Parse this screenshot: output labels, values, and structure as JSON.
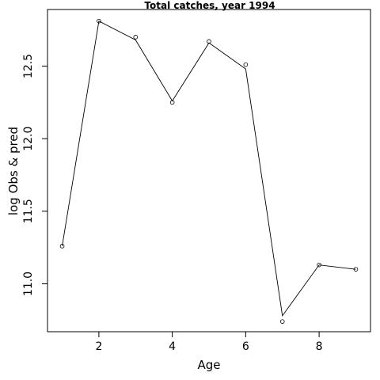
{
  "chart_data": {
    "type": "line",
    "title": "Total catches, year 1994",
    "xlabel": "Age",
    "ylabel": "log Obs & pred",
    "x": [
      1,
      2,
      3,
      4,
      5,
      6,
      7,
      8,
      9
    ],
    "series": [
      {
        "marker": "line",
        "values": [
          11.26,
          12.81,
          12.68,
          12.26,
          12.66,
          12.48,
          10.78,
          11.13,
          11.1
        ]
      },
      {
        "marker": "open-circle",
        "values": [
          11.26,
          12.81,
          12.7,
          12.25,
          12.67,
          12.51,
          10.74,
          11.13,
          11.1
        ]
      }
    ],
    "xlim": [
      0.6,
      9.4
    ],
    "ylim": [
      10.67,
      12.89
    ],
    "xticks": [
      2,
      4,
      6,
      8
    ],
    "yticks": [
      11.0,
      11.5,
      12.0,
      12.5
    ],
    "xtick_labels": [
      "2",
      "4",
      "6",
      "8"
    ],
    "ytick_labels": [
      "11.0",
      "11.5",
      "12.0",
      "12.5"
    ],
    "grid": false,
    "legend": "none",
    "line_color": "#000000"
  }
}
